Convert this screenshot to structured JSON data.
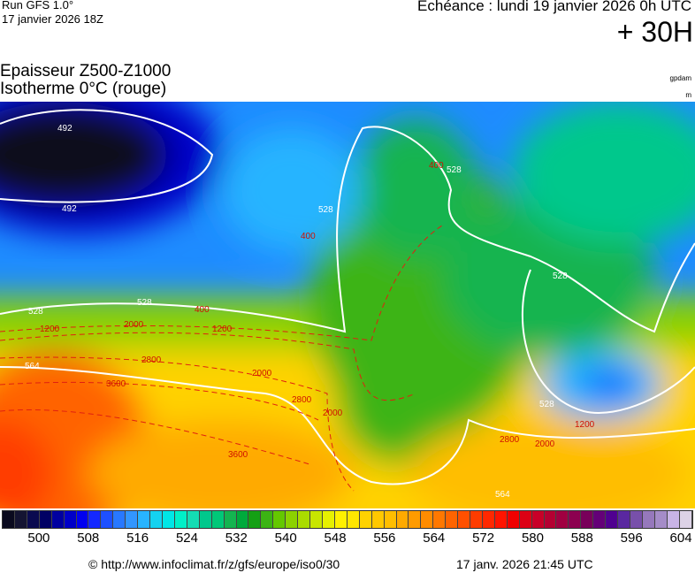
{
  "header": {
    "run_line1": "Run GFS 1.0°",
    "run_line2": "17 janvier 2026 18Z",
    "echeance": "Echéance : lundi 19 janvier 2026 0h UTC",
    "lead": "+ 30H"
  },
  "title": {
    "line1": "Epaisseur Z500-Z1000",
    "line2": "Isotherme 0°C (rouge)",
    "unit_top": "gpdam",
    "unit_bottom": "m"
  },
  "contours": {
    "thickness_labels": [
      "492",
      "492",
      "528",
      "528",
      "528",
      "528",
      "528",
      "528",
      "564",
      "564"
    ],
    "iso0_labels": [
      "400",
      "400",
      "400",
      "1200",
      "1200",
      "1200",
      "2000",
      "2000",
      "2000",
      "2000",
      "2800",
      "2800",
      "2800",
      "3600",
      "3600"
    ]
  },
  "colorbar": {
    "unit": "gpdam",
    "ticks": [
      "500",
      "508",
      "516",
      "524",
      "532",
      "540",
      "548",
      "556",
      "564",
      "572",
      "580",
      "588",
      "596",
      "604"
    ],
    "colors": [
      "#0a0a1e",
      "#141432",
      "#0a0a50",
      "#000064",
      "#0000a0",
      "#0000c8",
      "#0000f0",
      "#1428ff",
      "#1e50ff",
      "#2878ff",
      "#3296ff",
      "#28b4ff",
      "#14d2f0",
      "#00e6e6",
      "#00f0c8",
      "#14dcb4",
      "#00c88c",
      "#00c878",
      "#14b450",
      "#00aa3c",
      "#14a014",
      "#3cb414",
      "#64c800",
      "#8cd200",
      "#aadc00",
      "#c8e600",
      "#e6f000",
      "#fff000",
      "#ffe600",
      "#ffd200",
      "#ffc800",
      "#ffbe00",
      "#ffaa00",
      "#ff9b00",
      "#ff8c00",
      "#ff7800",
      "#ff6400",
      "#ff5000",
      "#ff3c00",
      "#ff2800",
      "#ff1400",
      "#f00000",
      "#dc0014",
      "#c80028",
      "#b40032",
      "#a00041",
      "#8c0050",
      "#78005a",
      "#640078",
      "#500090",
      "#5a28a0",
      "#7850aa",
      "#9678bc",
      "#a58cc8",
      "#c8b4e6",
      "#dcd2e6"
    ]
  },
  "footer": {
    "source": "© http://www.infoclimat.fr/z/gfs/europe/iso0/30",
    "generated": "17 janv. 2026 21:45 UTC"
  }
}
